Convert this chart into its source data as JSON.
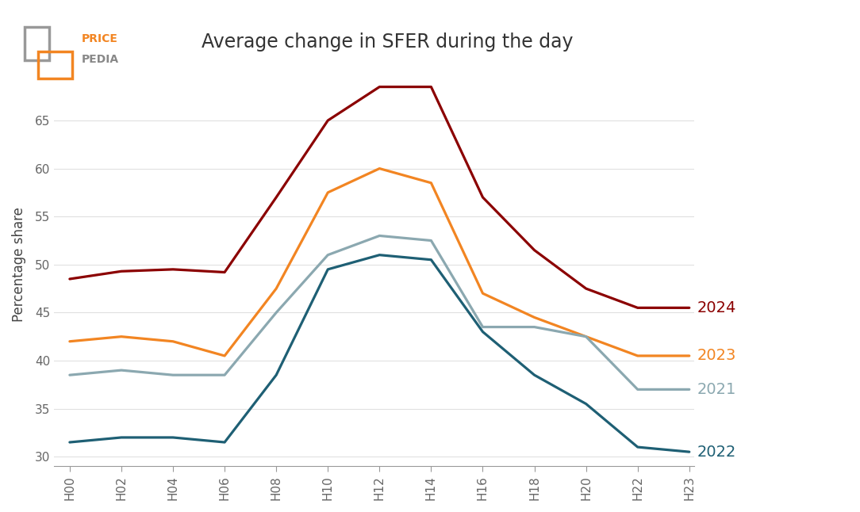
{
  "title": "Average change in SFER during the day",
  "ylabel": "Percentage share",
  "tick_labels": [
    "H00",
    "H02",
    "H04",
    "H06",
    "H08",
    "H10",
    "H12",
    "H14",
    "H16",
    "H18",
    "H20",
    "H22",
    "H23"
  ],
  "series": {
    "2024": {
      "color": "#8B0000",
      "values": [
        48.5,
        49.3,
        49.5,
        49.2,
        57.0,
        65.0,
        68.5,
        68.5,
        57.0,
        51.5,
        47.5,
        45.5,
        45.5
      ]
    },
    "2023": {
      "color": "#F28522",
      "values": [
        42.0,
        42.5,
        42.0,
        40.5,
        47.5,
        57.5,
        60.0,
        58.5,
        47.0,
        44.5,
        42.5,
        40.5,
        40.5
      ]
    },
    "2021": {
      "color": "#8BA8B0",
      "values": [
        38.5,
        39.0,
        38.5,
        38.5,
        45.0,
        51.0,
        53.0,
        52.5,
        43.5,
        43.5,
        42.5,
        37.0,
        37.0
      ]
    },
    "2022": {
      "color": "#1E5F74",
      "values": [
        31.5,
        32.0,
        32.0,
        31.5,
        38.5,
        49.5,
        51.0,
        50.5,
        43.0,
        38.5,
        35.5,
        31.0,
        30.5
      ]
    }
  },
  "ylim": [
    29,
    71
  ],
  "yticks": [
    30,
    35,
    40,
    45,
    50,
    55,
    60,
    65
  ],
  "legend_order": [
    "2024",
    "2023",
    "2021",
    "2022"
  ],
  "legend_colors": {
    "2024": "#8B0000",
    "2023": "#F28522",
    "2021": "#8BA8B0",
    "2022": "#1E5F74"
  },
  "legend_fontsizes": {
    "2024": 14,
    "2023": 14,
    "2021": 14,
    "2022": 14
  }
}
